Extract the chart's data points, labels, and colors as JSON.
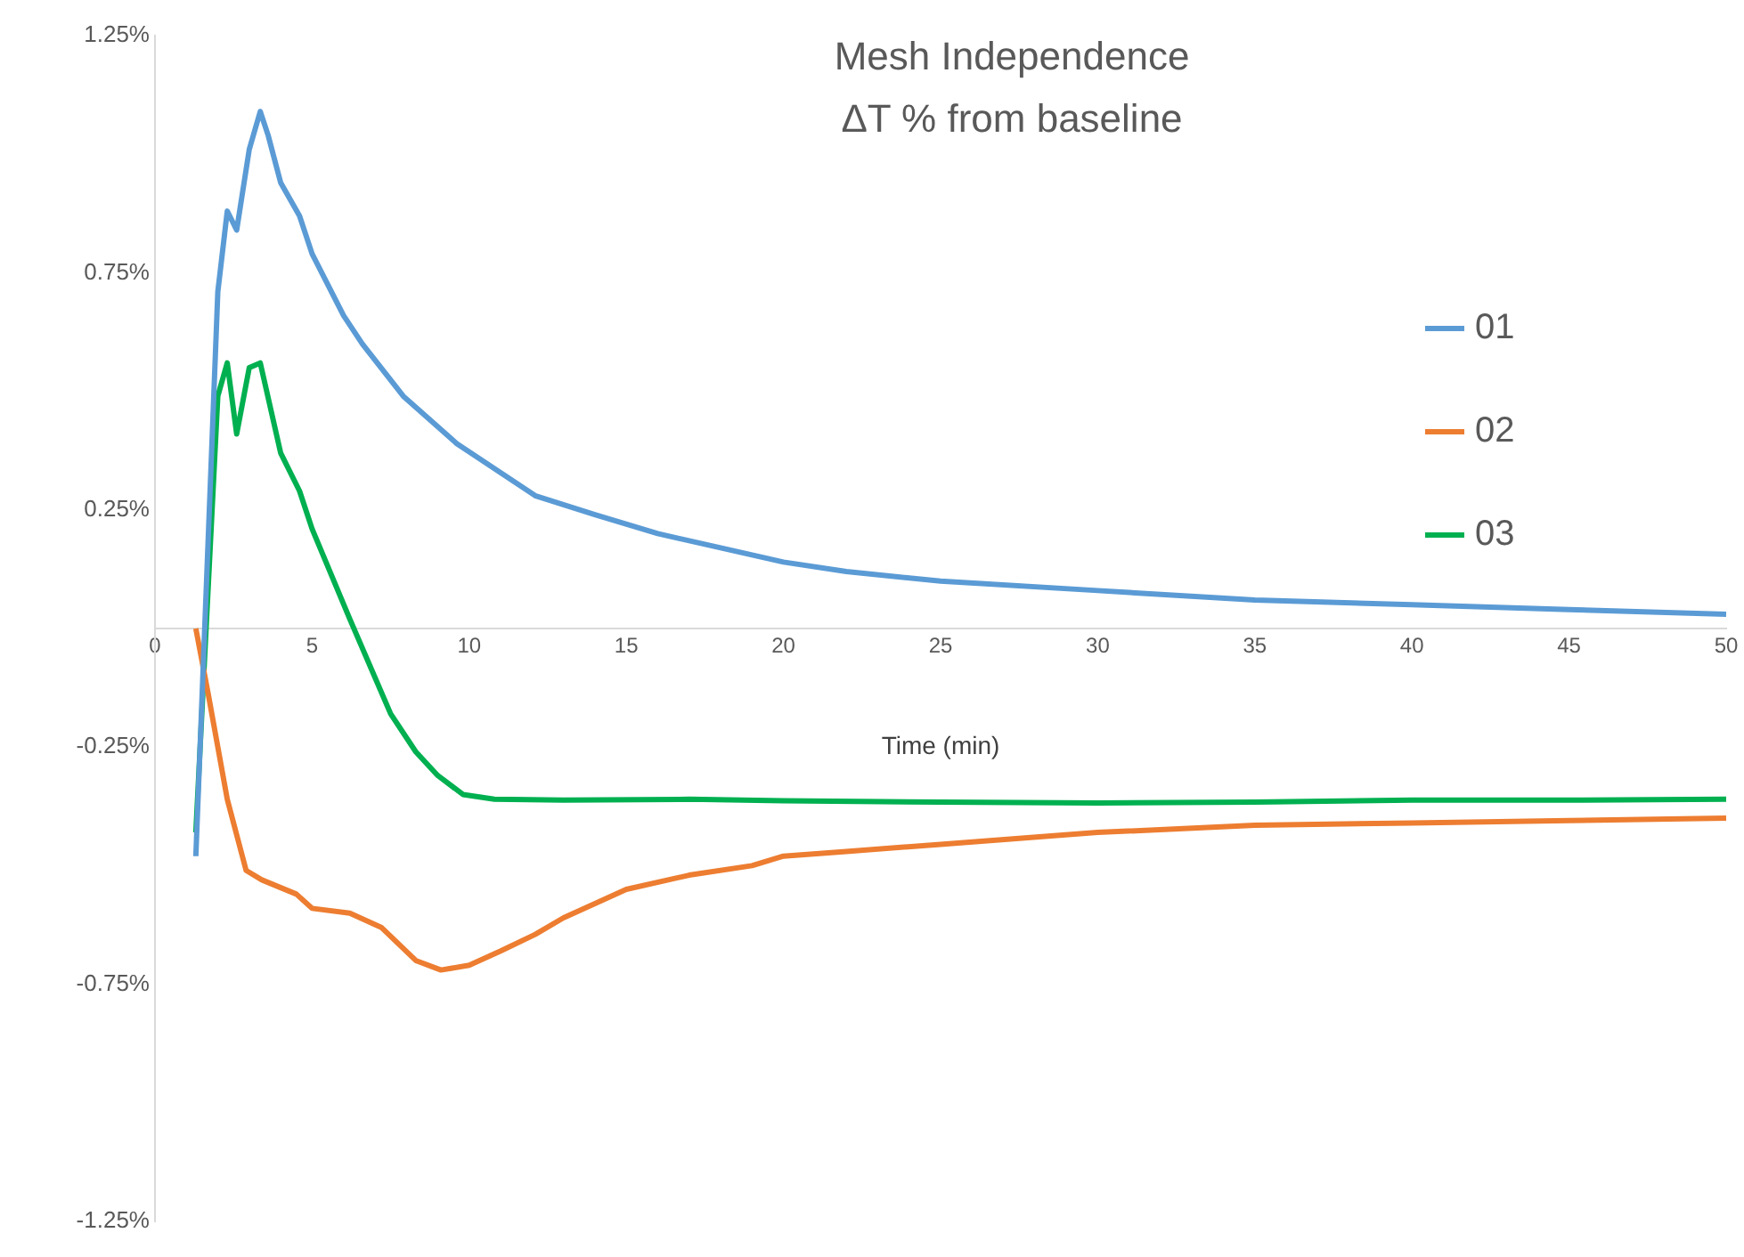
{
  "chart_data": {
    "type": "line",
    "title": "Mesh Independence",
    "subtitle": "ΔT % from baseline",
    "xlabel": "Time (min)",
    "xlim": [
      0,
      50
    ],
    "xticks": [
      0,
      5,
      10,
      15,
      20,
      25,
      30,
      35,
      40,
      45,
      50
    ],
    "ylim": [
      -1.25,
      1.25
    ],
    "yticks": [
      {
        "value": -1.25,
        "label": "-1.25%"
      },
      {
        "value": -0.75,
        "label": "-0.75%"
      },
      {
        "value": -0.25,
        "label": "-0.25%"
      },
      {
        "value": 0.25,
        "label": "0.25%"
      },
      {
        "value": 0.75,
        "label": "0.75%"
      },
      {
        "value": 1.25,
        "label": "1.25%"
      }
    ],
    "grid": false,
    "legend": "right",
    "marker": "none",
    "line_style": "solid",
    "series": [
      {
        "name": "01",
        "color": "#5b9bd5",
        "x": [
          1.3,
          2.0,
          2.3,
          2.6,
          3.0,
          3.35,
          3.6,
          4.0,
          4.6,
          5.0,
          6.0,
          6.6,
          7.9,
          9.6,
          12.1,
          14,
          16,
          18,
          20,
          22,
          25,
          30,
          35,
          40,
          45,
          50
        ],
        "values": [
          -0.48,
          0.71,
          0.88,
          0.84,
          1.01,
          1.09,
          1.04,
          0.94,
          0.87,
          0.79,
          0.66,
          0.6,
          0.49,
          0.39,
          0.28,
          0.24,
          0.2,
          0.17,
          0.14,
          0.12,
          0.1,
          0.08,
          0.06,
          0.05,
          0.04,
          0.03
        ]
      },
      {
        "name": "02",
        "color": "#ed7d31",
        "x": [
          1.3,
          1.7,
          2.3,
          2.9,
          3.4,
          4.5,
          5.0,
          6.2,
          7.2,
          8.3,
          9.1,
          10.0,
          11,
          12.1,
          13,
          15,
          17,
          19,
          20,
          22,
          25,
          30,
          35,
          40,
          45,
          50
        ],
        "values": [
          0,
          -0.14,
          -0.36,
          -0.51,
          -0.53,
          -0.56,
          -0.59,
          -0.6,
          -0.63,
          -0.7,
          -0.72,
          -0.71,
          -0.68,
          -0.645,
          -0.61,
          -0.55,
          -0.52,
          -0.5,
          -0.48,
          -0.47,
          -0.455,
          -0.43,
          -0.415,
          -0.41,
          -0.405,
          -0.4
        ]
      },
      {
        "name": "03",
        "color": "#00b050",
        "x": [
          1.3,
          2.0,
          2.3,
          2.6,
          3.0,
          3.35,
          4.0,
          4.6,
          5.0,
          6.2,
          7.5,
          8.3,
          9.0,
          9.8,
          10.8,
          13,
          17,
          20,
          25,
          30,
          35,
          40,
          45,
          50
        ],
        "values": [
          -0.43,
          0.49,
          0.56,
          0.41,
          0.55,
          0.56,
          0.37,
          0.29,
          0.21,
          0.02,
          -0.18,
          -0.26,
          -0.31,
          -0.35,
          -0.36,
          -0.362,
          -0.36,
          -0.363,
          -0.366,
          -0.368,
          -0.366,
          -0.362,
          -0.362,
          -0.36
        ]
      }
    ]
  }
}
